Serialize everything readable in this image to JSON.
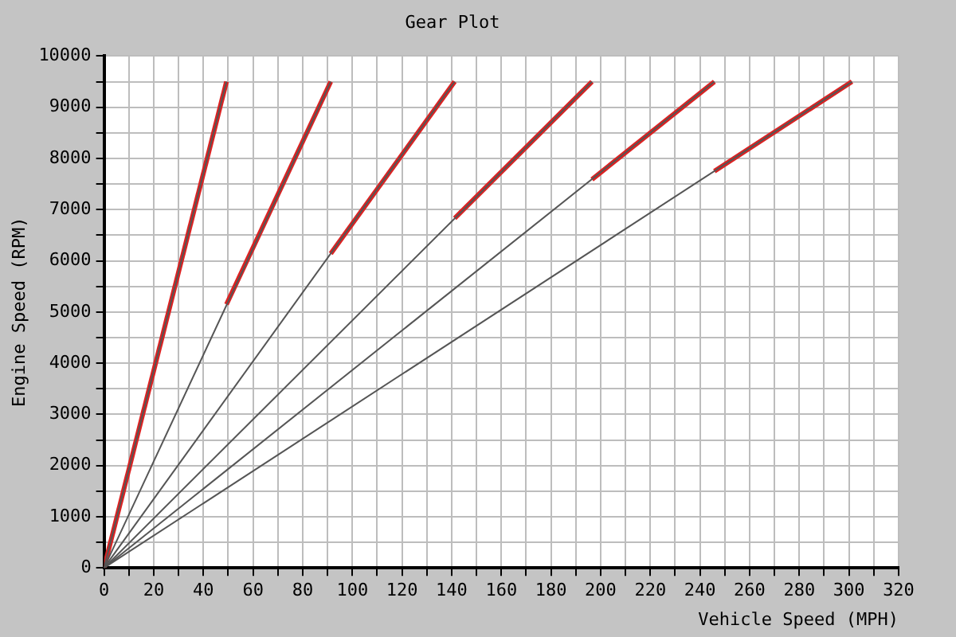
{
  "chart_data": {
    "type": "line",
    "title": "Gear Plot",
    "xlabel": "Vehicle Speed (MPH)",
    "ylabel": "Engine Speed (RPM)",
    "xlim": [
      0,
      320
    ],
    "ylim": [
      0,
      10000
    ],
    "xticks": [
      0,
      {
        "value": 10,
        "label": null
      },
      20,
      {
        "value": 30,
        "label": null
      },
      40,
      {
        "value": 50,
        "label": null
      },
      60,
      {
        "value": 70,
        "label": null
      },
      80,
      {
        "value": 90,
        "label": null
      },
      100,
      {
        "value": 110,
        "label": null
      },
      120,
      {
        "value": 130,
        "label": null
      },
      140,
      {
        "value": 150,
        "label": null
      },
      160,
      {
        "value": 170,
        "label": null
      },
      180,
      {
        "value": 190,
        "label": null
      },
      200,
      {
        "value": 210,
        "label": null
      },
      220,
      {
        "value": 230,
        "label": null
      },
      240,
      {
        "value": 250,
        "label": null
      },
      260,
      {
        "value": 270,
        "label": null
      },
      280,
      {
        "value": 290,
        "label": null
      },
      300,
      {
        "value": 310,
        "label": null
      },
      320
    ],
    "yticks": [
      0,
      {
        "value": 500,
        "label": null
      },
      1000,
      {
        "value": 1500,
        "label": null
      },
      2000,
      {
        "value": 2500,
        "label": null
      },
      3000,
      {
        "value": 3500,
        "label": null
      },
      4000,
      {
        "value": 4500,
        "label": null
      },
      5000,
      {
        "value": 5500,
        "label": null
      },
      6000,
      {
        "value": 6500,
        "label": null
      },
      7000,
      {
        "value": 7500,
        "label": null
      },
      8000,
      {
        "value": 8500,
        "label": null
      },
      9000,
      {
        "value": 9500,
        "label": null
      },
      10000
    ],
    "grid": true,
    "legend": false,
    "marker": "none",
    "line_style": "solid",
    "series": [
      {
        "color": "#555555",
        "x": [
          0,
          49.3
        ],
        "values": [
          0,
          9500
        ]
      },
      {
        "color": "#555555",
        "x": [
          0,
          91.3
        ],
        "values": [
          0,
          9500
        ]
      },
      {
        "color": "#555555",
        "x": [
          0,
          141.2
        ],
        "values": [
          0,
          9500
        ]
      },
      {
        "color": "#555555",
        "x": [
          0,
          196.5
        ],
        "values": [
          0,
          9500
        ]
      },
      {
        "color": "#555555",
        "x": [
          0,
          245.8
        ],
        "values": [
          0,
          9500
        ]
      },
      {
        "color": "#555555",
        "x": [
          0,
          301.2
        ],
        "values": [
          0,
          9500
        ]
      },
      {
        "color": "#dd2222",
        "x": [
          0,
          49.3
        ],
        "values": [
          0,
          9500
        ]
      },
      {
        "color": "#dd2222",
        "x": [
          49.3,
          91.3
        ],
        "values": [
          5150,
          9500
        ]
      },
      {
        "color": "#dd2222",
        "x": [
          91.3,
          141.2
        ],
        "values": [
          6140,
          9500
        ]
      },
      {
        "color": "#dd2222",
        "x": [
          141.2,
          196.5
        ],
        "values": [
          6830,
          9500
        ]
      },
      {
        "color": "#dd2222",
        "x": [
          196.5,
          245.8
        ],
        "values": [
          7590,
          9500
        ]
      },
      {
        "color": "#dd2222",
        "x": [
          245.8,
          301.2
        ],
        "values": [
          7750,
          9500
        ]
      }
    ]
  }
}
